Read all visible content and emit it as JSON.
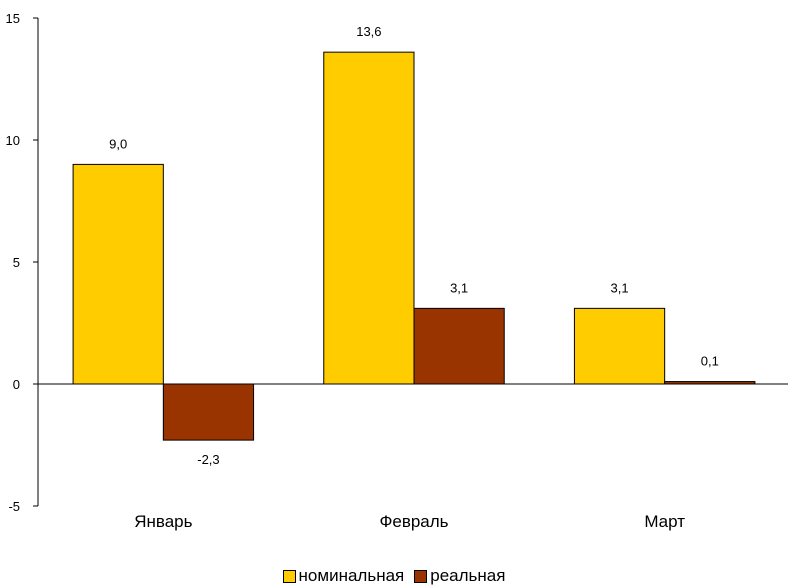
{
  "chart_data": {
    "type": "bar",
    "categories": [
      "Январь",
      "Февраль",
      "Март"
    ],
    "series": [
      {
        "name": "номинальная",
        "values": [
          9.0,
          13.6,
          3.1
        ],
        "labels": [
          "9,0",
          "13,6",
          "3,1"
        ],
        "color": "#FFCC00"
      },
      {
        "name": "реальная",
        "values": [
          -2.3,
          3.1,
          0.1
        ],
        "labels": [
          "-2,3",
          "3,1",
          "0,1"
        ],
        "color": "#993300"
      }
    ],
    "ylim": [
      -5,
      15
    ],
    "yticks": [
      -5,
      0,
      5,
      10,
      15
    ],
    "ytick_labels": [
      "-5",
      "0",
      "5",
      "10",
      "15"
    ],
    "legend_position": "bottom",
    "grid": false,
    "title": "",
    "xlabel": "",
    "ylabel": ""
  }
}
